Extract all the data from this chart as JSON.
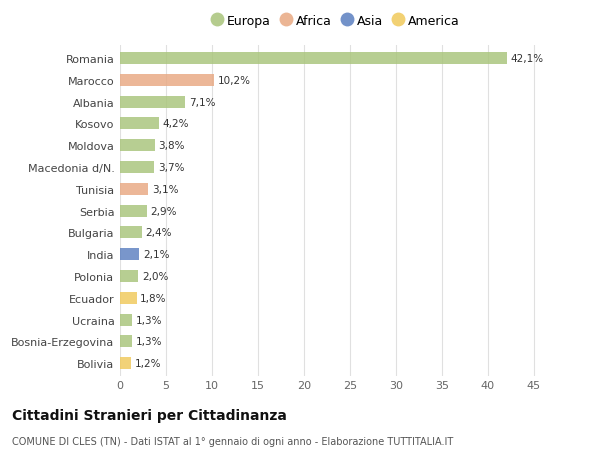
{
  "countries": [
    "Romania",
    "Marocco",
    "Albania",
    "Kosovo",
    "Moldova",
    "Macedonia d/N.",
    "Tunisia",
    "Serbia",
    "Bulgaria",
    "India",
    "Polonia",
    "Ecuador",
    "Ucraina",
    "Bosnia-Erzegovina",
    "Bolivia"
  ],
  "values": [
    42.1,
    10.2,
    7.1,
    4.2,
    3.8,
    3.7,
    3.1,
    2.9,
    2.4,
    2.1,
    2.0,
    1.8,
    1.3,
    1.3,
    1.2
  ],
  "labels": [
    "42,1%",
    "10,2%",
    "7,1%",
    "4,2%",
    "3,8%",
    "3,7%",
    "3,1%",
    "2,9%",
    "2,4%",
    "2,1%",
    "2,0%",
    "1,8%",
    "1,3%",
    "1,3%",
    "1,2%"
  ],
  "regions": [
    "Europa",
    "Africa",
    "Europa",
    "Europa",
    "Europa",
    "Europa",
    "Africa",
    "Europa",
    "Europa",
    "Asia",
    "Europa",
    "America",
    "Europa",
    "Europa",
    "America"
  ],
  "colors": {
    "Europa": "#a8c47a",
    "Africa": "#e8a882",
    "Asia": "#5b7fc0",
    "America": "#f0c95a"
  },
  "legend_order": [
    "Europa",
    "Africa",
    "Asia",
    "America"
  ],
  "legend_colors": [
    "#a8c47a",
    "#e8a882",
    "#5b7fc0",
    "#f0c95a"
  ],
  "title": "Cittadini Stranieri per Cittadinanza",
  "subtitle": "COMUNE DI CLES (TN) - Dati ISTAT al 1° gennaio di ogni anno - Elaborazione TUTTITALIA.IT",
  "xlim": [
    0,
    47
  ],
  "xticks": [
    0,
    5,
    10,
    15,
    20,
    25,
    30,
    35,
    40,
    45
  ],
  "background_color": "#ffffff",
  "grid_color": "#e0e0e0"
}
